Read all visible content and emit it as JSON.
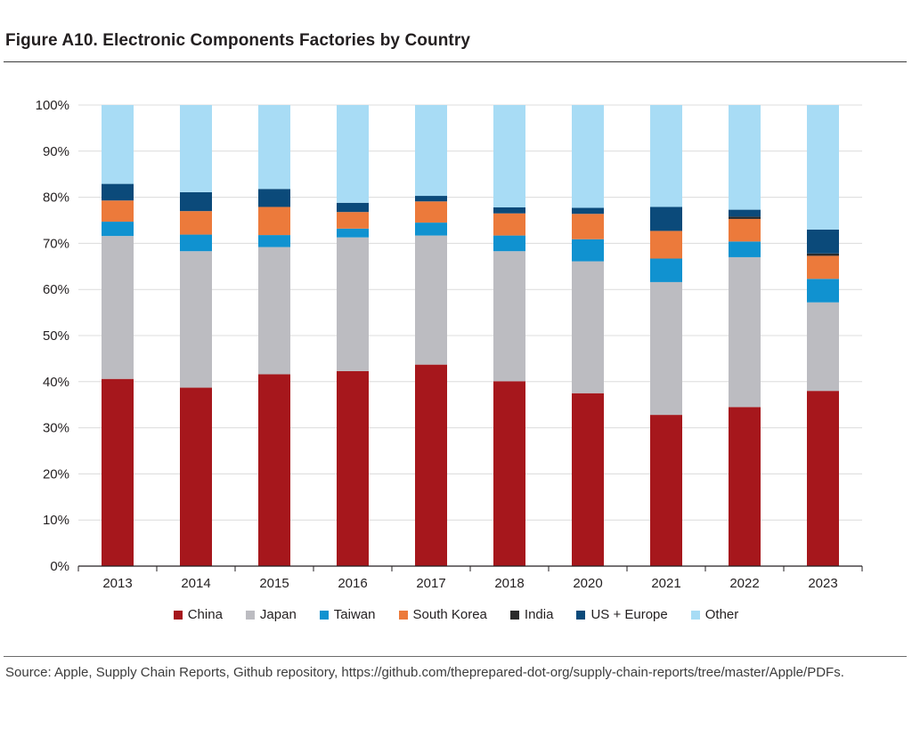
{
  "figure": {
    "title": "Figure A10. Electronic Components Factories by Country",
    "source": "Source: Apple, Supply Chain Reports, Github repository, https://github.com/theprepared-dot-org/supply-chain-reports/tree/master/Apple/PDFs."
  },
  "chart_data": {
    "type": "bar",
    "stacked": true,
    "title": "",
    "xlabel": "",
    "ylabel": "",
    "ylim": [
      0,
      100
    ],
    "y_tick_labels": [
      "0%",
      "10%",
      "20%",
      "30%",
      "40%",
      "50%",
      "60%",
      "70%",
      "80%",
      "90%",
      "100%"
    ],
    "categories": [
      "2013",
      "2014",
      "2015",
      "2016",
      "2017",
      "2018",
      "2020",
      "2021",
      "2022",
      "2023"
    ],
    "grid": true,
    "legend_position": "bottom",
    "series": [
      {
        "name": "China",
        "color": "#a6171c",
        "values": [
          40.6,
          38.7,
          41.6,
          42.3,
          43.7,
          40.1,
          37.5,
          32.8,
          34.5,
          38.0
        ]
      },
      {
        "name": "Japan",
        "color": "#bcbcc1",
        "values": [
          31.0,
          29.6,
          27.6,
          29.0,
          28.0,
          28.2,
          28.6,
          28.8,
          32.5,
          19.2
        ]
      },
      {
        "name": "Taiwan",
        "color": "#1092d0",
        "values": [
          3.1,
          3.6,
          2.6,
          1.9,
          2.8,
          3.4,
          4.8,
          5.1,
          3.4,
          5.1
        ]
      },
      {
        "name": "South Korea",
        "color": "#ec7a3b",
        "values": [
          4.6,
          5.1,
          6.1,
          3.6,
          4.6,
          4.8,
          5.5,
          6.0,
          4.9,
          5.0
        ]
      },
      {
        "name": "India",
        "color": "#2b2b2b",
        "values": [
          0,
          0,
          0,
          0,
          0,
          0,
          0,
          0,
          0.5,
          0.5
        ]
      },
      {
        "name": "US + Europe",
        "color": "#0b4a7a",
        "values": [
          3.6,
          4.1,
          3.9,
          2.0,
          1.2,
          1.3,
          1.3,
          5.2,
          1.5,
          5.2
        ]
      },
      {
        "name": "Other",
        "color": "#a8dcf5",
        "values": [
          17.1,
          18.9,
          18.2,
          21.2,
          19.7,
          22.2,
          22.3,
          22.1,
          22.7,
          27.0
        ]
      }
    ]
  }
}
